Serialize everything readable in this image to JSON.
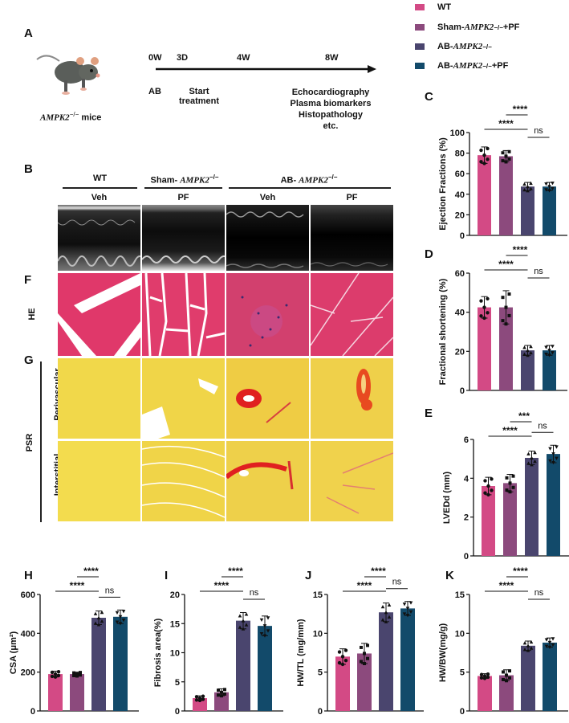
{
  "legend": {
    "items": [
      {
        "label": "WT",
        "color": "#d34a85"
      },
      {
        "label_prefix": "Sham-",
        "gene": "AMPK2",
        "sup": "−/−",
        "label_suffix": "+PF",
        "color": "#8c4a7d"
      },
      {
        "label_prefix": "AB- ",
        "gene": "AMPK2",
        "sup": "−/−",
        "label_suffix": "",
        "color": "#4a456e"
      },
      {
        "label_prefix": "AB- ",
        "gene": "AMPK2",
        "sup": "−/−",
        "label_suffix": " +PF",
        "color": "#124a6a"
      }
    ]
  },
  "panel_a": {
    "label": "A",
    "mouse_caption_gene": "AMPK2",
    "mouse_caption_sup": "−/−",
    "mouse_caption_suffix": " mice",
    "timeline": {
      "ticks": [
        "0W",
        "3D",
        "4W",
        "8W"
      ],
      "below": {
        "ab": "AB",
        "start_1": "Start",
        "start_2": "treatment",
        "end_1": "Echocardiography",
        "end_2": "Plasma biomarkers",
        "end_3": "Histopathology",
        "end_4": "etc."
      }
    }
  },
  "panel_b": {
    "label": "B",
    "groups": [
      {
        "name": "WT"
      },
      {
        "name_prefix": "Sham- ",
        "gene": "AMPK2",
        "sup": "−/−"
      },
      {
        "name_prefix": "AB- ",
        "gene": "AMPK2",
        "sup": "−/−"
      }
    ],
    "treatments": [
      "Veh",
      "PF",
      "Veh",
      "PF"
    ]
  },
  "panel_f": {
    "label": "F",
    "row_label": "HE"
  },
  "panel_g": {
    "label": "G",
    "row_label": "PSR",
    "sub_rows": [
      "Perivascular",
      "Interstitial"
    ]
  },
  "chart_data": [
    {
      "id": "C",
      "type": "bar",
      "title": "",
      "ylabel": "Ejection Fractions (%)",
      "ylim": [
        0,
        100
      ],
      "yticks": [
        0,
        20,
        40,
        60,
        80,
        100
      ],
      "categories": [
        "WT",
        "Sham-AMPK2-/-+PF",
        "AB-AMPK2-/-",
        "AB-AMPK2-/- +PF"
      ],
      "values": [
        78,
        77,
        47.5,
        47.5
      ],
      "errors": [
        8,
        5.5,
        4,
        4
      ],
      "significance": [
        {
          "pair": [
            1,
            3
          ],
          "label": "****"
        },
        {
          "pair": [
            2,
            3
          ],
          "label": "****"
        },
        {
          "pair": [
            3,
            4
          ],
          "label": "ns"
        }
      ]
    },
    {
      "id": "D",
      "type": "bar",
      "title": "",
      "ylabel": "Fractional shortening (%)",
      "ylim": [
        0,
        60
      ],
      "yticks": [
        0,
        20,
        40,
        60
      ],
      "categories": [
        "WT",
        "Sham-AMPK2-/-+PF",
        "AB-AMPK2-/-",
        "AB-AMPK2-/- +PF"
      ],
      "values": [
        42.5,
        42.5,
        20.5,
        20.5
      ],
      "errors": [
        5.5,
        8.5,
        2.5,
        2.5
      ],
      "significance": [
        {
          "pair": [
            1,
            3
          ],
          "label": "****"
        },
        {
          "pair": [
            2,
            3
          ],
          "label": "****"
        },
        {
          "pair": [
            3,
            4
          ],
          "label": "ns"
        }
      ]
    },
    {
      "id": "E",
      "type": "bar",
      "title": "",
      "ylabel": "LVEDd (mm)",
      "ylim": [
        0,
        6
      ],
      "yticks": [
        0,
        2,
        4,
        6
      ],
      "categories": [
        "WT",
        "Sham-AMPK2-/-+PF",
        "AB-AMPK2-/-",
        "AB-AMPK2-/- +PF"
      ],
      "values": [
        3.6,
        3.75,
        5.05,
        5.25
      ],
      "errors": [
        0.45,
        0.45,
        0.35,
        0.45
      ],
      "significance": [
        {
          "pair": [
            1,
            3
          ],
          "label": "****"
        },
        {
          "pair": [
            2,
            3
          ],
          "label": "***"
        },
        {
          "pair": [
            3,
            4
          ],
          "label": "ns"
        }
      ]
    },
    {
      "id": "H",
      "type": "bar",
      "title": "",
      "ylabel": "CSA (μm²)",
      "ylim": [
        0,
        600
      ],
      "yticks": [
        0,
        200,
        400,
        600
      ],
      "categories": [
        "WT",
        "Sham-AMPK2-/-+PF",
        "AB-AMPK2-/-",
        "AB-AMPK2-/- +PF"
      ],
      "values": [
        190,
        190,
        480,
        485
      ],
      "errors": [
        15,
        10,
        35,
        35
      ],
      "significance": [
        {
          "pair": [
            1,
            3
          ],
          "label": "****"
        },
        {
          "pair": [
            2,
            3
          ],
          "label": "****"
        },
        {
          "pair": [
            3,
            4
          ],
          "label": "ns"
        }
      ]
    },
    {
      "id": "I",
      "type": "bar",
      "title": "",
      "ylabel": "Fibrosis area(%)",
      "ylim": [
        0,
        20
      ],
      "yticks": [
        0,
        5,
        10,
        15,
        20
      ],
      "categories": [
        "WT",
        "Sham-AMPK2-/-+PF",
        "AB-AMPK2-/-",
        "AB-AMPK2-/- +PF"
      ],
      "values": [
        2.2,
        3.2,
        15.5,
        14.6
      ],
      "errors": [
        0.4,
        0.6,
        1.4,
        1.7
      ],
      "significance": [
        {
          "pair": [
            1,
            3
          ],
          "label": "****"
        },
        {
          "pair": [
            2,
            3
          ],
          "label": "****"
        },
        {
          "pair": [
            3,
            4
          ],
          "label": "ns"
        }
      ]
    },
    {
      "id": "J",
      "type": "bar",
      "title": "",
      "ylabel": "HW/TL (mg/mm)",
      "ylim": [
        0,
        15
      ],
      "yticks": [
        0,
        5,
        10,
        15
      ],
      "categories": [
        "WT",
        "Sham-AMPK2-/-+PF",
        "AB-AMPK2-/-",
        "AB-AMPK2-/- +PF"
      ],
      "values": [
        7.0,
        7.4,
        12.7,
        13.2
      ],
      "errors": [
        1.0,
        1.3,
        1.2,
        0.9
      ],
      "significance": [
        {
          "pair": [
            1,
            3
          ],
          "label": "****"
        },
        {
          "pair": [
            2,
            3
          ],
          "label": "****"
        },
        {
          "pair": [
            3,
            4
          ],
          "label": "ns"
        }
      ]
    },
    {
      "id": "K",
      "type": "bar",
      "title": "",
      "ylabel": "HW/BW(mg/g)",
      "ylim": [
        0,
        15
      ],
      "yticks": [
        0,
        5,
        10,
        15
      ],
      "categories": [
        "WT",
        "Sham-AMPK2-/-+PF",
        "AB-AMPK2-/-",
        "AB-AMPK2-/- +PF"
      ],
      "values": [
        4.5,
        4.6,
        8.4,
        8.8
      ],
      "errors": [
        0.3,
        0.7,
        0.6,
        0.6
      ],
      "significance": [
        {
          "pair": [
            1,
            3
          ],
          "label": "****"
        },
        {
          "pair": [
            2,
            3
          ],
          "label": "****"
        },
        {
          "pair": [
            3,
            4
          ],
          "label": "ns"
        }
      ]
    }
  ]
}
